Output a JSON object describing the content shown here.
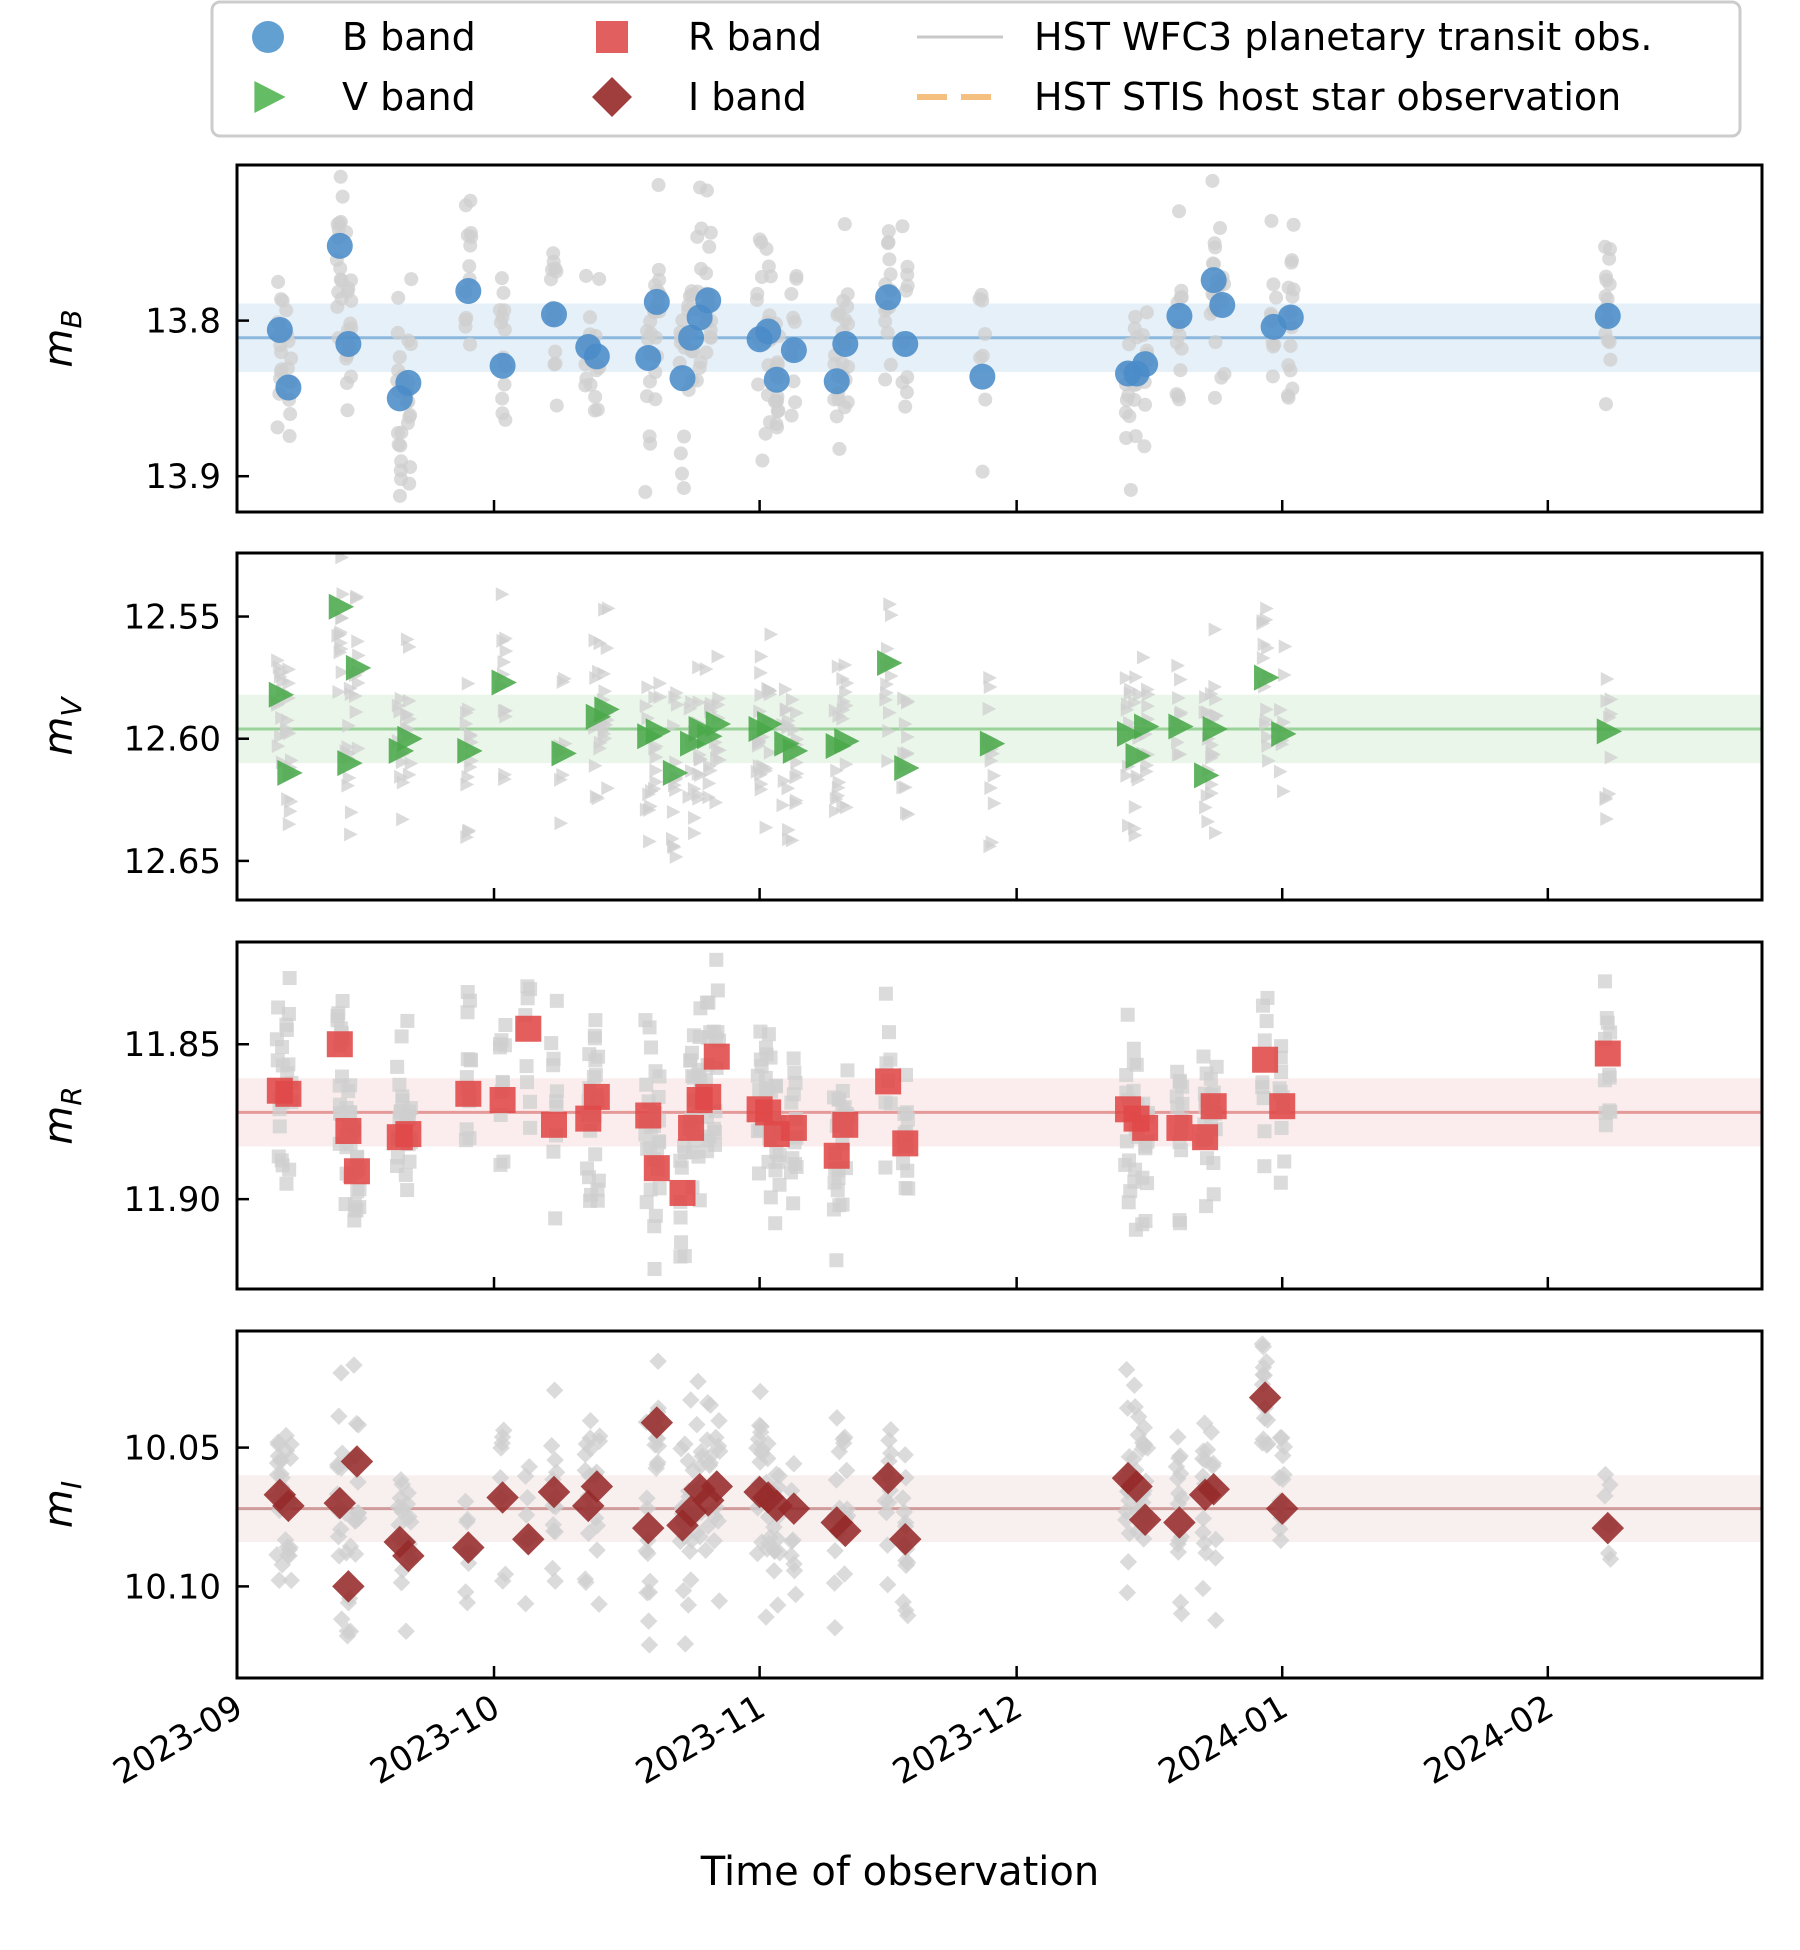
{
  "chart_data": {
    "type": "scatter",
    "xlabel": "Time of observation",
    "xlim": [
      "2023-09-01",
      "2024-02-26"
    ],
    "x_ticks": [
      "2023-09-01",
      "2023-10-01",
      "2023-11-01",
      "2023-12-01",
      "2024-01-01",
      "2024-02-01"
    ],
    "x_tick_labels": [
      "2023-09",
      "2023-10",
      "2023-11",
      "2023-12",
      "2024-01",
      "2024-02"
    ],
    "legend": {
      "placement": "top",
      "entries": [
        {
          "label": "B band",
          "marker": "circle",
          "color": "#5b9bd0"
        },
        {
          "label": "V band",
          "marker": "triangle-right",
          "color": "#5cb85c"
        },
        {
          "label": "R band",
          "marker": "square",
          "color": "#e05656"
        },
        {
          "label": "I band",
          "marker": "diamond",
          "color": "#9b3434"
        },
        {
          "label": "HST WFC3 planetary transit obs.",
          "marker": "line",
          "color": "#c8c8c8"
        },
        {
          "label": "HST STIS host star observation",
          "marker": "dashed-line",
          "color": "#f5bf80"
        }
      ]
    },
    "panels": [
      {
        "band": "B",
        "ylabel": "m_B",
        "ylabel_main": "m",
        "ylabel_sub": "B",
        "marker": "circle",
        "color": "#4a8cc8",
        "band_color": "#cfe4f3",
        "line_color": "#8bb8dc",
        "ylim": [
          13.923,
          13.7
        ],
        "ytick_values": [
          13.8,
          13.9
        ],
        "ytick_labels": [
          "13.8",
          "13.9"
        ],
        "mean": 13.811,
        "band_halfwidth": 0.022,
        "x": [
          "2023-09-06",
          "2023-09-07",
          "2023-09-13",
          "2023-09-14",
          "2023-09-20",
          "2023-09-21",
          "2023-09-28",
          "2023-10-02",
          "2023-10-08",
          "2023-10-12",
          "2023-10-13",
          "2023-10-19",
          "2023-10-20",
          "2023-10-23",
          "2023-10-24",
          "2023-10-25",
          "2023-10-26",
          "2023-11-01",
          "2023-11-02",
          "2023-11-03",
          "2023-11-05",
          "2023-11-10",
          "2023-11-11",
          "2023-11-16",
          "2023-11-18",
          "2023-11-27",
          "2023-12-14",
          "2023-12-15",
          "2023-12-16",
          "2023-12-20",
          "2023-12-24",
          "2023-12-25",
          "2023-12-31",
          "2024-01-02",
          "2024-02-08"
        ],
        "values": [
          13.806,
          13.843,
          13.752,
          13.815,
          13.85,
          13.84,
          13.781,
          13.829,
          13.796,
          13.817,
          13.823,
          13.824,
          13.788,
          13.837,
          13.811,
          13.798,
          13.787,
          13.812,
          13.807,
          13.838,
          13.819,
          13.839,
          13.815,
          13.785,
          13.815,
          13.836,
          13.834,
          13.834,
          13.828,
          13.797,
          13.774,
          13.79,
          13.804,
          13.798,
          13.797
        ]
      },
      {
        "band": "V",
        "ylabel": "m_V",
        "ylabel_main": "m",
        "ylabel_sub": "V",
        "marker": "triangle-right",
        "color": "#4aa84a",
        "band_color": "#d9efd9",
        "line_color": "#9ad29a",
        "ylim": [
          12.666,
          12.524
        ],
        "ytick_values": [
          12.55,
          12.6,
          12.65
        ],
        "ytick_labels": [
          "12.55",
          "12.60",
          "12.65"
        ],
        "mean": 12.596,
        "band_halfwidth": 0.014,
        "x": [
          "2023-09-06",
          "2023-09-07",
          "2023-09-13",
          "2023-09-14",
          "2023-09-15",
          "2023-09-20",
          "2023-09-21",
          "2023-09-28",
          "2023-10-02",
          "2023-10-09",
          "2023-10-13",
          "2023-10-14",
          "2023-10-19",
          "2023-10-20",
          "2023-10-22",
          "2023-10-24",
          "2023-10-25",
          "2023-10-26",
          "2023-10-27",
          "2023-11-01",
          "2023-11-02",
          "2023-11-04",
          "2023-11-05",
          "2023-11-10",
          "2023-11-11",
          "2023-11-16",
          "2023-11-18",
          "2023-11-28",
          "2023-12-14",
          "2023-12-15",
          "2023-12-16",
          "2023-12-20",
          "2023-12-23",
          "2023-12-24",
          "2023-12-30",
          "2024-01-01",
          "2024-02-08"
        ],
        "values": [
          12.582,
          12.614,
          12.546,
          12.61,
          12.571,
          12.605,
          12.6,
          12.605,
          12.577,
          12.606,
          12.591,
          12.588,
          12.599,
          12.597,
          12.614,
          12.602,
          12.596,
          12.599,
          12.594,
          12.596,
          12.594,
          12.602,
          12.605,
          12.603,
          12.601,
          12.569,
          12.612,
          12.602,
          12.598,
          12.607,
          12.595,
          12.595,
          12.615,
          12.596,
          12.575,
          12.598,
          12.597
        ]
      },
      {
        "band": "R",
        "ylabel": "m_R",
        "ylabel_main": "m",
        "ylabel_sub": "R",
        "marker": "square",
        "color": "#e04848",
        "band_color": "#f8dede",
        "line_color": "#e59a9a",
        "ylim": [
          11.929,
          11.817
        ],
        "ytick_values": [
          11.85,
          11.9
        ],
        "ytick_labels": [
          "11.85",
          "11.90"
        ],
        "mean": 11.872,
        "band_halfwidth": 0.011,
        "x": [
          "2023-09-06",
          "2023-09-07",
          "2023-09-13",
          "2023-09-14",
          "2023-09-15",
          "2023-09-20",
          "2023-09-21",
          "2023-09-28",
          "2023-10-02",
          "2023-10-05",
          "2023-10-08",
          "2023-10-12",
          "2023-10-13",
          "2023-10-19",
          "2023-10-20",
          "2023-10-23",
          "2023-10-24",
          "2023-10-25",
          "2023-10-26",
          "2023-10-27",
          "2023-11-01",
          "2023-11-02",
          "2023-11-03",
          "2023-11-05",
          "2023-11-10",
          "2023-11-11",
          "2023-11-16",
          "2023-11-18",
          "2023-12-14",
          "2023-12-15",
          "2023-12-16",
          "2023-12-20",
          "2023-12-23",
          "2023-12-24",
          "2023-12-30",
          "2024-01-01",
          "2024-02-08"
        ],
        "values": [
          11.865,
          11.866,
          11.85,
          11.878,
          11.891,
          11.88,
          11.879,
          11.866,
          11.868,
          11.845,
          11.876,
          11.874,
          11.867,
          11.873,
          11.89,
          11.898,
          11.877,
          11.868,
          11.867,
          11.854,
          11.871,
          11.872,
          11.879,
          11.877,
          11.886,
          11.876,
          11.862,
          11.882,
          11.871,
          11.874,
          11.877,
          11.877,
          11.88,
          11.87,
          11.855,
          11.87,
          11.853
        ]
      },
      {
        "band": "I",
        "ylabel": "m_I",
        "ylabel_main": "m",
        "ylabel_sub": "I",
        "marker": "diamond",
        "color": "#962a2a",
        "band_color": "#f3e2e2",
        "line_color": "#d09b9b",
        "ylim": [
          10.133,
          10.008
        ],
        "ytick_values": [
          10.05,
          10.1
        ],
        "ytick_labels": [
          "10.05",
          "10.10"
        ],
        "mean": 10.072,
        "band_halfwidth": 0.012,
        "x": [
          "2023-09-06",
          "2023-09-07",
          "2023-09-13",
          "2023-09-14",
          "2023-09-15",
          "2023-09-20",
          "2023-09-21",
          "2023-09-28",
          "2023-10-02",
          "2023-10-05",
          "2023-10-08",
          "2023-10-12",
          "2023-10-13",
          "2023-10-19",
          "2023-10-20",
          "2023-10-23",
          "2023-10-24",
          "2023-10-25",
          "2023-10-26",
          "2023-10-27",
          "2023-11-01",
          "2023-11-02",
          "2023-11-03",
          "2023-11-05",
          "2023-11-10",
          "2023-11-11",
          "2023-11-16",
          "2023-11-18",
          "2023-12-14",
          "2023-12-15",
          "2023-12-16",
          "2023-12-20",
          "2023-12-23",
          "2023-12-24",
          "2023-12-30",
          "2024-01-01",
          "2024-02-08"
        ],
        "values": [
          10.067,
          10.071,
          10.07,
          10.1,
          10.055,
          10.084,
          10.089,
          10.086,
          10.068,
          10.083,
          10.066,
          10.071,
          10.064,
          10.079,
          10.041,
          10.078,
          10.073,
          10.065,
          10.069,
          10.064,
          10.066,
          10.068,
          10.071,
          10.072,
          10.077,
          10.08,
          10.061,
          10.083,
          10.061,
          10.064,
          10.076,
          10.077,
          10.067,
          10.065,
          10.032,
          10.072,
          10.079
        ]
      }
    ]
  }
}
